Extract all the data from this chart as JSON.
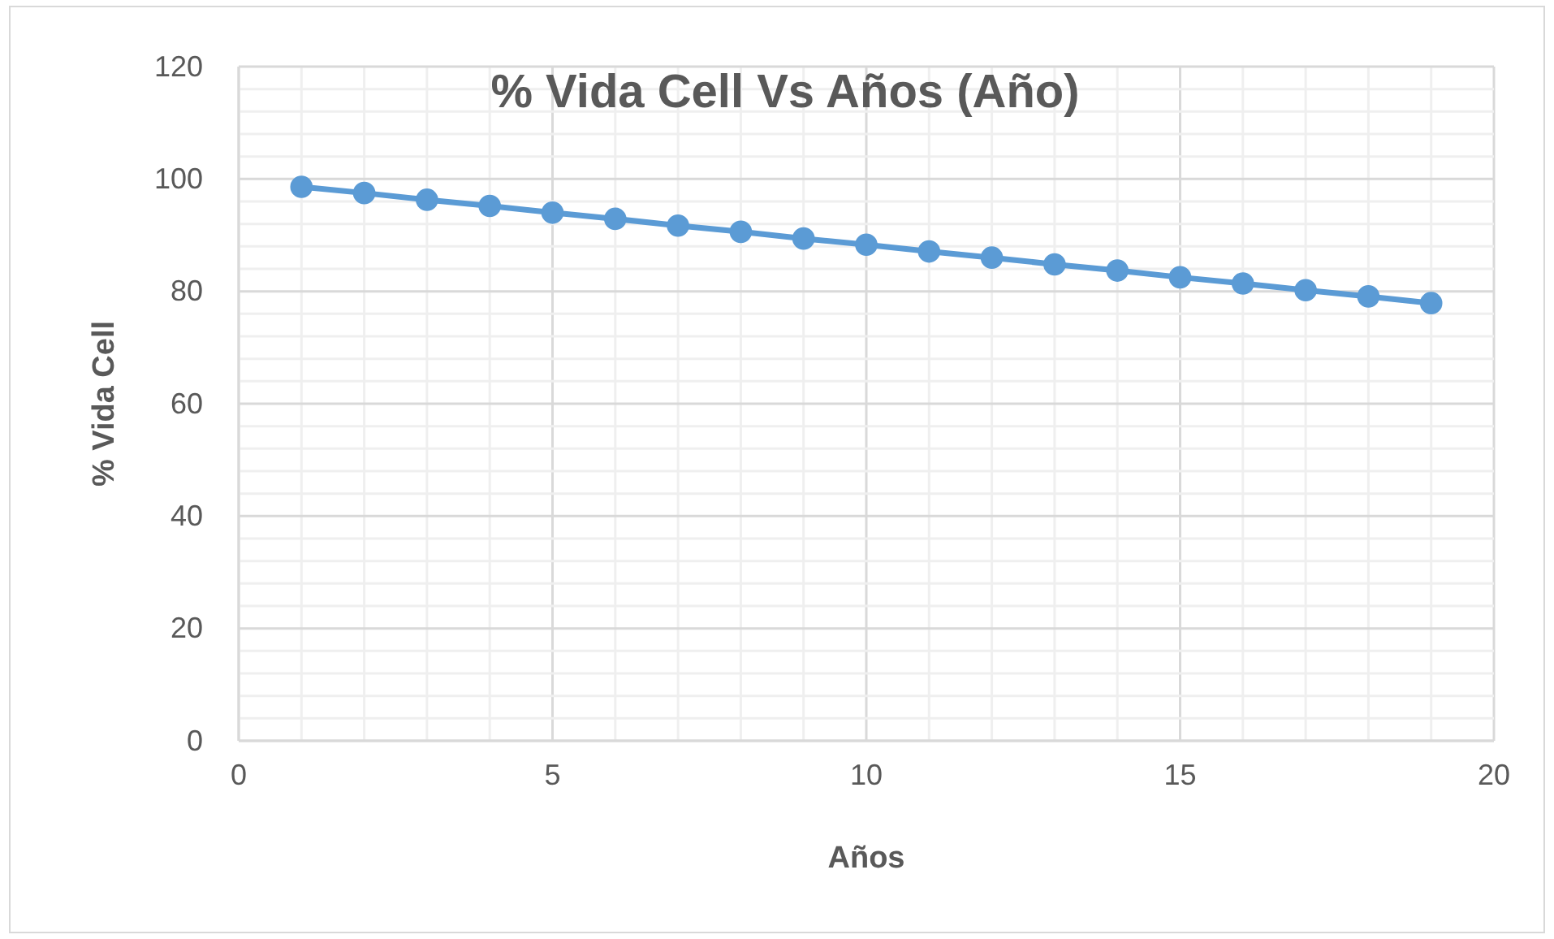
{
  "chart_data": {
    "type": "line",
    "title": "% Vida Cell Vs Años (Año)",
    "xlabel": "Años",
    "ylabel": "% Vida Cell",
    "x": [
      1,
      2,
      3,
      4,
      5,
      6,
      7,
      8,
      9,
      10,
      11,
      12,
      13,
      14,
      15,
      16,
      17,
      18,
      19
    ],
    "series": [
      {
        "color": "#5b9bd5",
        "values": [
          98.6,
          97.5,
          96.3,
          95.2,
          94.0,
          92.9,
          91.7,
          90.6,
          89.4,
          88.3,
          87.1,
          86.0,
          84.8,
          83.7,
          82.5,
          81.4,
          80.2,
          79.1,
          77.9
        ]
      }
    ],
    "xlim": [
      0,
      20
    ],
    "ylim": [
      0,
      120
    ],
    "xticks": [
      0,
      {
        "value": 1,
        "label": null
      },
      {
        "value": 2,
        "label": null
      },
      {
        "value": 3,
        "label": null
      },
      {
        "value": 4,
        "label": null
      },
      5,
      {
        "value": 6,
        "label": null
      },
      {
        "value": 7,
        "label": null
      },
      {
        "value": 8,
        "label": null
      },
      {
        "value": 9,
        "label": null
      },
      10,
      {
        "value": 11,
        "label": null
      },
      {
        "value": 12,
        "label": null
      },
      {
        "value": 13,
        "label": null
      },
      {
        "value": 14,
        "label": null
      },
      15,
      {
        "value": 16,
        "label": null
      },
      {
        "value": 17,
        "label": null
      },
      {
        "value": 18,
        "label": null
      },
      {
        "value": 19,
        "label": null
      },
      20
    ],
    "yticks": [
      0,
      {
        "value": 4,
        "label": null
      },
      {
        "value": 8,
        "label": null
      },
      {
        "value": 12,
        "label": null
      },
      {
        "value": 16,
        "label": null
      },
      20,
      {
        "value": 24,
        "label": null
      },
      {
        "value": 28,
        "label": null
      },
      {
        "value": 32,
        "label": null
      },
      {
        "value": 36,
        "label": null
      },
      40,
      {
        "value": 44,
        "label": null
      },
      {
        "value": 48,
        "label": null
      },
      {
        "value": 52,
        "label": null
      },
      {
        "value": 56,
        "label": null
      },
      60,
      {
        "value": 64,
        "label": null
      },
      {
        "value": 68,
        "label": null
      },
      {
        "value": 72,
        "label": null
      },
      {
        "value": 76,
        "label": null
      },
      80,
      {
        "value": 84,
        "label": null
      },
      {
        "value": 88,
        "label": null
      },
      {
        "value": 92,
        "label": null
      },
      {
        "value": 96,
        "label": null
      },
      100,
      {
        "value": 104,
        "label": null
      },
      {
        "value": 108,
        "label": null
      },
      {
        "value": 112,
        "label": null
      },
      {
        "value": 116,
        "label": null
      },
      120
    ],
    "grid": true,
    "marker": "circle",
    "line_style": "solid"
  }
}
